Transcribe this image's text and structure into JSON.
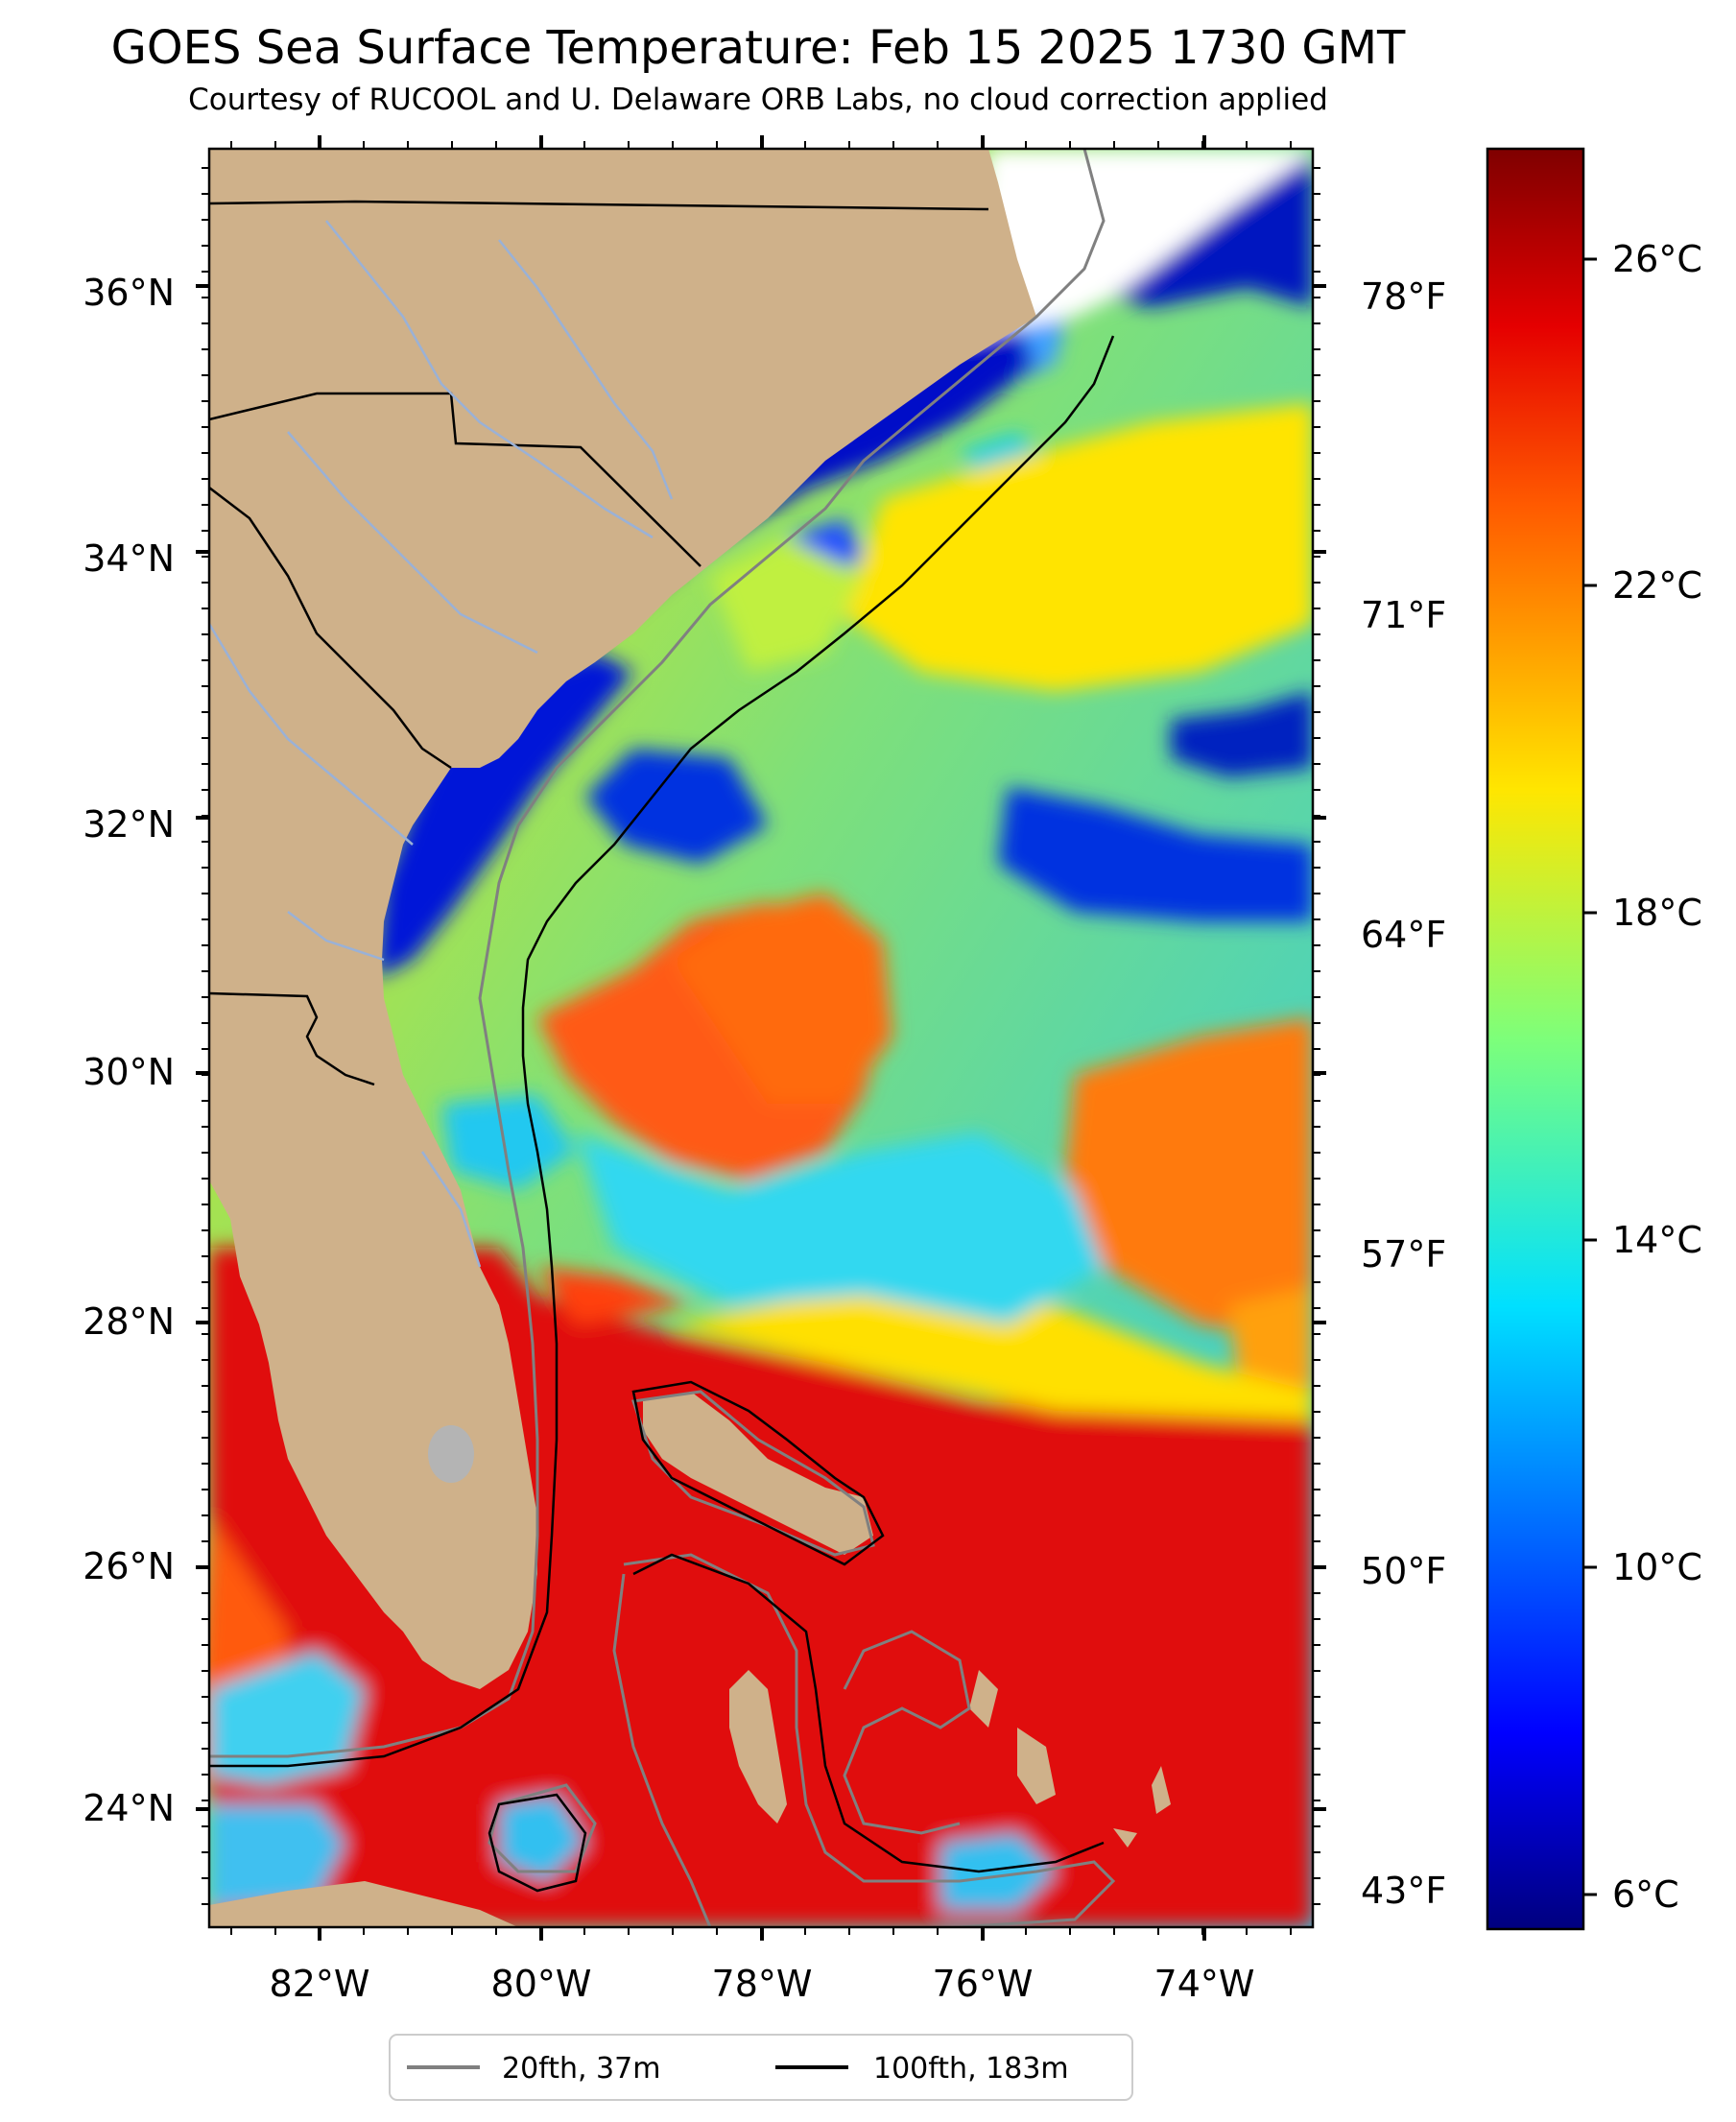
{
  "title": "GOES Sea Surface Temperature: Feb 15 2025 1730 GMT",
  "subtitle": "Courtesy of RUCOOL and U. Delaware ORB Labs, no cloud correction applied",
  "map": {
    "lon_range": [
      -83,
      -73
    ],
    "lat_range": [
      23.1,
      37.0
    ],
    "lat_ticks": [
      "36°N",
      "34°N",
      "32°N",
      "30°N",
      "28°N",
      "26°N",
      "24°N"
    ],
    "lon_ticks": [
      "82°W",
      "80°W",
      "78°W",
      "76°W",
      "74°W"
    ],
    "fahrenheit_ticks": [
      "78°F",
      "71°F",
      "64°F",
      "57°F",
      "50°F",
      "43°F"
    ],
    "land_color": "#cfb18a",
    "lake_color": "#b4b4b4",
    "river_color": "#9ab1d6"
  },
  "colorbar": {
    "colormap": "jet",
    "range_c": [
      5.5,
      27.5
    ],
    "ticks": [
      "26°C",
      "22°C",
      "18°C",
      "14°C",
      "10°C",
      "6°C"
    ]
  },
  "legend": {
    "items": [
      {
        "label": "20fth, 37m",
        "color": "#808080"
      },
      {
        "label": "100fth, 183m",
        "color": "#000000"
      }
    ]
  }
}
